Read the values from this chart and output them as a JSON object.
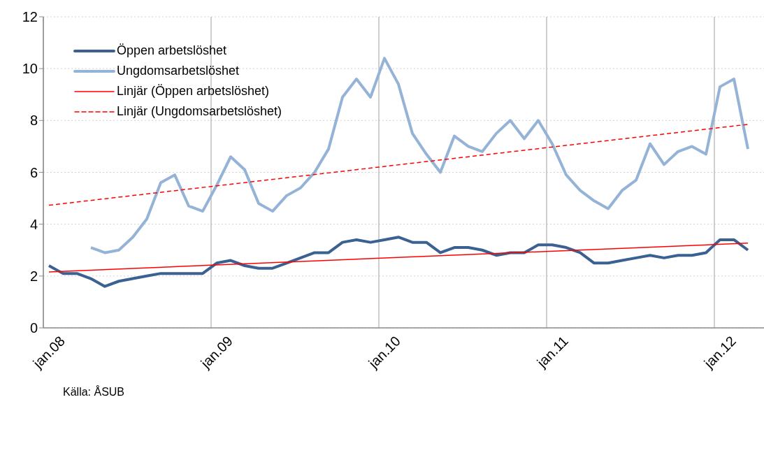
{
  "chart_data": {
    "type": "line",
    "categories": [
      "jan.08",
      null,
      null,
      null,
      null,
      null,
      null,
      null,
      null,
      null,
      null,
      null,
      "jan.09",
      null,
      null,
      null,
      null,
      null,
      null,
      null,
      null,
      null,
      null,
      null,
      "jan.10",
      null,
      null,
      null,
      null,
      null,
      null,
      null,
      null,
      null,
      null,
      null,
      "jan.11",
      null,
      null,
      null,
      null,
      null,
      null,
      null,
      null,
      null,
      null,
      null,
      "jan.12",
      null,
      null
    ],
    "series": [
      {
        "name": "Öppen arbetslöshet",
        "color": "#3a6191",
        "values": [
          2.4,
          2.1,
          2.1,
          1.9,
          1.6,
          1.8,
          1.9,
          2.0,
          2.1,
          2.1,
          2.1,
          2.1,
          2.5,
          2.6,
          2.4,
          2.3,
          2.3,
          2.5,
          2.7,
          2.9,
          2.9,
          3.3,
          3.4,
          3.3,
          3.4,
          3.5,
          3.3,
          3.3,
          2.9,
          3.1,
          3.1,
          3.0,
          2.8,
          2.9,
          2.9,
          3.2,
          3.2,
          3.1,
          2.9,
          2.5,
          2.5,
          2.6,
          2.7,
          2.8,
          2.7,
          2.8,
          2.8,
          2.9,
          3.4,
          3.4,
          3.0
        ]
      },
      {
        "name": "Ungdomsarbetslöshet",
        "color": "#95b3d7",
        "values": [
          null,
          null,
          null,
          3.1,
          2.9,
          3.0,
          3.5,
          4.2,
          5.6,
          5.9,
          4.7,
          4.5,
          5.5,
          6.6,
          6.1,
          4.8,
          4.5,
          5.1,
          5.4,
          6.0,
          6.9,
          8.9,
          9.6,
          8.9,
          10.4,
          9.4,
          7.5,
          6.7,
          6.0,
          7.4,
          7.0,
          6.8,
          7.5,
          8.0,
          7.3,
          8.0,
          7.1,
          5.9,
          5.3,
          4.9,
          4.6,
          5.3,
          5.7,
          7.1,
          6.3,
          6.8,
          7.0,
          6.7,
          9.3,
          9.6,
          6.9
        ]
      },
      {
        "name": "Linjär (Öppen arbetslöshet)",
        "type": "line",
        "color": "#ff0000",
        "line_style": "solid",
        "values": [
          2.16,
          null,
          null,
          null,
          null,
          null,
          null,
          null,
          null,
          null,
          null,
          null,
          null,
          null,
          null,
          null,
          null,
          null,
          null,
          null,
          null,
          null,
          null,
          null,
          null,
          null,
          null,
          null,
          null,
          null,
          null,
          null,
          null,
          null,
          null,
          null,
          null,
          null,
          null,
          null,
          null,
          null,
          null,
          null,
          null,
          null,
          null,
          null,
          null,
          null,
          3.27
        ]
      },
      {
        "name": "Linjär (Ungdomsarbetslöshet)",
        "type": "line",
        "color": "#ff0000",
        "line_style": "dashed",
        "values": [
          4.73,
          null,
          null,
          null,
          null,
          null,
          null,
          null,
          null,
          null,
          null,
          null,
          null,
          null,
          null,
          null,
          null,
          null,
          null,
          null,
          null,
          null,
          null,
          null,
          null,
          null,
          null,
          null,
          null,
          null,
          null,
          null,
          null,
          null,
          null,
          null,
          null,
          null,
          null,
          null,
          null,
          null,
          null,
          null,
          null,
          null,
          null,
          null,
          null,
          null,
          7.85
        ]
      }
    ],
    "ylim": [
      0,
      12
    ],
    "yticks": [
      0,
      2,
      4,
      6,
      8,
      10,
      12
    ],
    "grid": true,
    "legend": "top left",
    "marker": "none",
    "annotations": [
      "Källa: ÅSUB"
    ]
  }
}
